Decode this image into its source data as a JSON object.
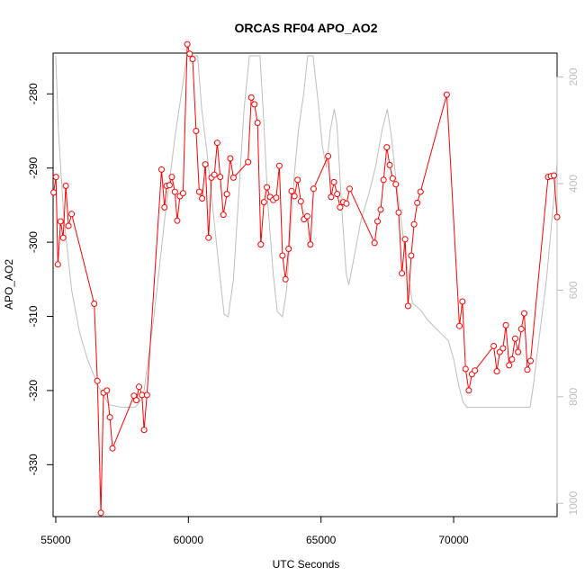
{
  "chart_data": {
    "type": "line",
    "title": "ORCAS RF04 APO_AO2",
    "xlabel": "UTC Seconds",
    "ylabel": "APO_AO2",
    "xlim": [
      54900,
      73900
    ],
    "ylim": [
      -337,
      -274.5
    ],
    "x_ticks": [
      55000,
      60000,
      65000,
      70000
    ],
    "y_ticks": [
      -330,
      -320,
      -310,
      -300,
      -290,
      -280
    ],
    "y2_ticks": [
      200,
      400,
      600,
      800,
      1000
    ],
    "y2_range_top_to_bottom": [
      155,
      1025
    ],
    "grid": false,
    "legend": "none",
    "colors": {
      "primary": "#ff0000",
      "secondary": "#bebebe",
      "axis": "#000000"
    },
    "series": [
      {
        "style": "line+points",
        "color": "#ff0000",
        "points": [
          [
            54920,
            -293.3
          ],
          [
            55010,
            -291.2
          ],
          [
            55080,
            -303.0
          ],
          [
            55180,
            -297.2
          ],
          [
            55280,
            -299.4
          ],
          [
            55380,
            -292.4
          ],
          [
            55480,
            -297.8
          ],
          [
            55600,
            -296.2
          ],
          [
            56450,
            -308.3
          ],
          [
            56570,
            -318.7
          ],
          [
            56700,
            -336.5
          ],
          [
            56800,
            -320.3
          ],
          [
            56930,
            -320.0
          ],
          [
            57040,
            -323.6
          ],
          [
            57140,
            -327.8
          ],
          [
            57950,
            -320.7
          ],
          [
            58040,
            -321.3
          ],
          [
            58140,
            -319.5
          ],
          [
            58250,
            -320.6
          ],
          [
            58330,
            -325.3
          ],
          [
            58440,
            -320.6
          ],
          [
            58990,
            -290.2
          ],
          [
            59100,
            -295.3
          ],
          [
            59180,
            -292.4
          ],
          [
            59290,
            -292.3
          ],
          [
            59380,
            -291.2
          ],
          [
            59490,
            -293.2
          ],
          [
            59580,
            -297.1
          ],
          [
            59680,
            -293.8
          ],
          [
            59800,
            -293.4
          ],
          [
            59960,
            -273.3
          ],
          [
            60050,
            -274.6
          ],
          [
            60160,
            -275.3
          ],
          [
            60290,
            -285.0
          ],
          [
            60410,
            -293.2
          ],
          [
            60520,
            -294.1
          ],
          [
            60640,
            -289.5
          ],
          [
            60760,
            -299.4
          ],
          [
            60870,
            -291.3
          ],
          [
            60980,
            -290.9
          ],
          [
            61090,
            -286.6
          ],
          [
            61200,
            -291.2
          ],
          [
            61320,
            -296.3
          ],
          [
            61450,
            -293.5
          ],
          [
            61580,
            -288.7
          ],
          [
            61700,
            -291.3
          ],
          [
            62250,
            -289.2
          ],
          [
            62370,
            -280.5
          ],
          [
            62490,
            -281.4
          ],
          [
            62610,
            -283.9
          ],
          [
            62730,
            -300.3
          ],
          [
            62850,
            -294.6
          ],
          [
            62960,
            -292.6
          ],
          [
            63080,
            -293.9
          ],
          [
            63200,
            -294.3
          ],
          [
            63310,
            -294.0
          ],
          [
            63430,
            -289.7
          ],
          [
            63550,
            -301.8
          ],
          [
            63660,
            -305.0
          ],
          [
            63780,
            -300.9
          ],
          [
            63890,
            -293.1
          ],
          [
            64000,
            -293.8
          ],
          [
            64120,
            -291.6
          ],
          [
            64240,
            -294.5
          ],
          [
            64360,
            -296.9
          ],
          [
            64480,
            -296.5
          ],
          [
            64600,
            -300.3
          ],
          [
            64720,
            -292.8
          ],
          [
            65270,
            -288.4
          ],
          [
            65380,
            -293.9
          ],
          [
            65490,
            -291.9
          ],
          [
            65610,
            -293.5
          ],
          [
            65720,
            -295.3
          ],
          [
            65840,
            -294.6
          ],
          [
            65960,
            -294.8
          ],
          [
            66080,
            -292.8
          ],
          [
            67020,
            -300.1
          ],
          [
            67130,
            -297.2
          ],
          [
            67250,
            -295.6
          ],
          [
            67360,
            -291.6
          ],
          [
            67480,
            -287.2
          ],
          [
            67590,
            -289.6
          ],
          [
            67700,
            -291.4
          ],
          [
            67820,
            -292.2
          ],
          [
            67930,
            -296.0
          ],
          [
            68050,
            -304.2
          ],
          [
            68170,
            -299.6
          ],
          [
            68280,
            -308.6
          ],
          [
            68400,
            -301.8
          ],
          [
            68510,
            -297.6
          ],
          [
            68630,
            -294.7
          ],
          [
            68750,
            -293.2
          ],
          [
            69740,
            -280.1
          ],
          [
            70220,
            -311.3
          ],
          [
            70330,
            -308.0
          ],
          [
            70450,
            -317.1
          ],
          [
            70570,
            -320.0
          ],
          [
            70690,
            -317.8
          ],
          [
            70800,
            -317.3
          ],
          [
            71510,
            -314.0
          ],
          [
            71630,
            -317.4
          ],
          [
            71740,
            -314.8
          ],
          [
            71860,
            -314.3
          ],
          [
            71970,
            -311.2
          ],
          [
            72090,
            -316.6
          ],
          [
            72200,
            -315.8
          ],
          [
            72320,
            -313.0
          ],
          [
            72430,
            -314.8
          ],
          [
            72550,
            -311.7
          ],
          [
            72660,
            -309.6
          ],
          [
            72780,
            -317.2
          ],
          [
            72900,
            -316.0
          ],
          [
            73560,
            -291.2
          ],
          [
            73670,
            -291.1
          ],
          [
            73780,
            -291.0
          ],
          [
            73900,
            -296.6
          ]
        ]
      },
      {
        "style": "line",
        "color": "#bebebe",
        "axis": "right",
        "points": [
          [
            55000,
            160
          ],
          [
            55100,
            300
          ],
          [
            55300,
            460
          ],
          [
            55600,
            600
          ],
          [
            55900,
            680
          ],
          [
            56200,
            730
          ],
          [
            56600,
            780
          ],
          [
            57000,
            815
          ],
          [
            57500,
            820
          ],
          [
            58000,
            820
          ],
          [
            58300,
            800
          ],
          [
            58700,
            650
          ],
          [
            59100,
            470
          ],
          [
            59500,
            310
          ],
          [
            59800,
            210
          ],
          [
            59950,
            160
          ],
          [
            60350,
            160
          ],
          [
            60500,
            260
          ],
          [
            60700,
            340
          ],
          [
            60950,
            460
          ],
          [
            61200,
            580
          ],
          [
            61350,
            645
          ],
          [
            61500,
            650
          ],
          [
            61700,
            580
          ],
          [
            61900,
            420
          ],
          [
            62100,
            260
          ],
          [
            62300,
            160
          ],
          [
            62700,
            160
          ],
          [
            62850,
            290
          ],
          [
            63000,
            440
          ],
          [
            63200,
            570
          ],
          [
            63350,
            640
          ],
          [
            63550,
            650
          ],
          [
            63700,
            600
          ],
          [
            63850,
            490
          ],
          [
            64000,
            380
          ],
          [
            64150,
            300
          ],
          [
            64350,
            230
          ],
          [
            64500,
            160
          ],
          [
            64700,
            160
          ],
          [
            64900,
            250
          ],
          [
            65050,
            330
          ],
          [
            65200,
            370
          ],
          [
            65350,
            300
          ],
          [
            65500,
            260
          ],
          [
            65600,
            290
          ],
          [
            65800,
            460
          ],
          [
            65950,
            570
          ],
          [
            66050,
            590
          ],
          [
            66200,
            550
          ],
          [
            66500,
            470
          ],
          [
            66800,
            420
          ],
          [
            67050,
            370
          ],
          [
            67300,
            300
          ],
          [
            67500,
            260
          ],
          [
            67650,
            310
          ],
          [
            67800,
            380
          ],
          [
            68000,
            460
          ],
          [
            68200,
            540
          ],
          [
            68450,
            625
          ],
          [
            68600,
            630
          ],
          [
            68800,
            640
          ],
          [
            69000,
            655
          ],
          [
            69300,
            670
          ],
          [
            69600,
            685
          ],
          [
            69800,
            695
          ],
          [
            70000,
            730
          ],
          [
            70200,
            780
          ],
          [
            70350,
            810
          ],
          [
            70500,
            820
          ],
          [
            71000,
            820
          ],
          [
            71500,
            820
          ],
          [
            72000,
            820
          ],
          [
            72500,
            820
          ],
          [
            72880,
            820
          ],
          [
            73000,
            780
          ],
          [
            73250,
            680
          ],
          [
            73500,
            580
          ],
          [
            73700,
            470
          ],
          [
            73900,
            360
          ]
        ]
      }
    ]
  }
}
